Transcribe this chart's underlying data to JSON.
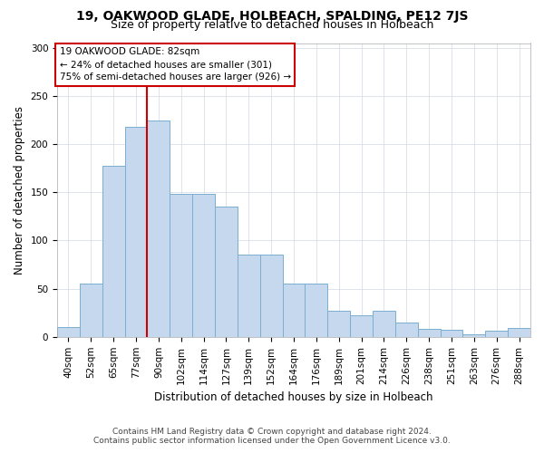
{
  "title": "19, OAKWOOD GLADE, HOLBEACH, SPALDING, PE12 7JS",
  "subtitle": "Size of property relative to detached houses in Holbeach",
  "xlabel": "Distribution of detached houses by size in Holbeach",
  "ylabel": "Number of detached properties",
  "categories": [
    "40sqm",
    "52sqm",
    "65sqm",
    "77sqm",
    "90sqm",
    "102sqm",
    "114sqm",
    "127sqm",
    "139sqm",
    "152sqm",
    "164sqm",
    "176sqm",
    "189sqm",
    "201sqm",
    "214sqm",
    "226sqm",
    "238sqm",
    "251sqm",
    "263sqm",
    "276sqm",
    "288sqm"
  ],
  "values": [
    10,
    55,
    178,
    218,
    225,
    148,
    148,
    135,
    85,
    85,
    55,
    55,
    27,
    22,
    27,
    15,
    8,
    7,
    3,
    6,
    9
  ],
  "bar_color": "#c5d8ed",
  "bar_edge_color": "#7aaed0",
  "vline_x_index": 3,
  "vline_color": "#cc0000",
  "annotation_box_text": "19 OAKWOOD GLADE: 82sqm\n← 24% of detached houses are smaller (301)\n75% of semi-detached houses are larger (926) →",
  "annotation_box_color": "#ffffff",
  "annotation_box_edge_color": "#cc0000",
  "ylim": [
    0,
    305
  ],
  "yticks": [
    0,
    50,
    100,
    150,
    200,
    250,
    300
  ],
  "footer_line1": "Contains HM Land Registry data © Crown copyright and database right 2024.",
  "footer_line2": "Contains public sector information licensed under the Open Government Licence v3.0.",
  "title_fontsize": 10,
  "subtitle_fontsize": 9,
  "axis_label_fontsize": 8.5,
  "tick_fontsize": 7.5,
  "annotation_fontsize": 7.5,
  "footer_fontsize": 6.5,
  "background_color": "#ffffff",
  "grid_color": "#d0d8e4"
}
